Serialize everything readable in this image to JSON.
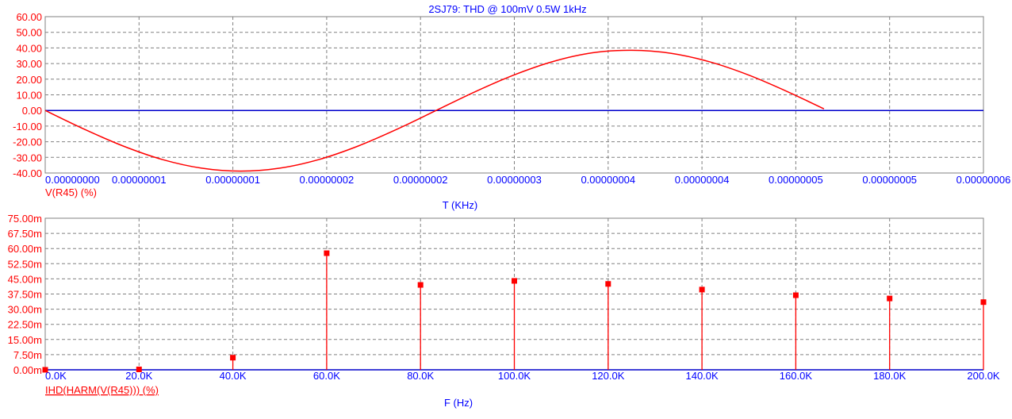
{
  "colors": {
    "trace": "#ff0000",
    "ylabels": "#ff0000",
    "xlabels": "#0000ff",
    "axis": "#0000cc",
    "grid": "#808080"
  },
  "chart_data": [
    {
      "type": "line",
      "title": "2SJ79: THD @ 100mV 0.5W  1kHz",
      "xlabel": "T (KHz)",
      "ylabel": "V(R45) (%)",
      "xlim": [
        0,
        6e-08
      ],
      "ylim": [
        -40,
        60
      ],
      "grid": true,
      "xticks": [
        0,
        6e-09,
        1.2e-08,
        1.8e-08,
        2.4e-08,
        3e-08,
        3.6e-08,
        4.2e-08,
        4.8e-08,
        5.4e-08,
        6e-08
      ],
      "xtick_labels": [
        "0.00000000",
        "0.00000001",
        "0.00000001",
        "0.00000002",
        "0.00000002",
        "0.00000003",
        "0.00000004",
        "0.00000004",
        "0.00000005",
        "0.00000005",
        "0.00000006"
      ],
      "yticks": [
        60,
        50,
        40,
        30,
        20,
        10,
        0,
        -10,
        -20,
        -30,
        -40
      ],
      "ytick_labels": [
        "60.00",
        "50.00",
        "40.00",
        "30.00",
        "20.00",
        "10.00",
        "0.00",
        "-10.00",
        "-20.00",
        "-30.00",
        "-40.00"
      ],
      "series": [
        {
          "x": [
            0,
            2.5e-09,
            5e-09,
            7.5e-09,
            1e-08,
            1.25e-08,
            1.5e-08,
            1.75e-08,
            2e-08,
            2.25e-08,
            2.5e-08,
            2.75e-08,
            3e-08,
            3.25e-08,
            3.5e-08,
            3.75e-08,
            4e-08,
            4.25e-08,
            4.5e-08,
            4.75e-08,
            4.98e-08
          ],
          "y": [
            0,
            -12.0,
            -22.8,
            -31.4,
            -36.9,
            -38.8,
            -36.9,
            -31.4,
            -22.8,
            -12.0,
            0,
            12.0,
            22.8,
            31.4,
            36.9,
            38.5,
            36.6,
            31.1,
            22.6,
            11.9,
            1.0
          ]
        }
      ]
    },
    {
      "type": "bar",
      "style": "stem",
      "xlabel": "F (Hz)",
      "ylabel": "IHD(HARM(V(R45))) (%)",
      "xlim": [
        0,
        200000
      ],
      "ylim": [
        0,
        0.075
      ],
      "grid": true,
      "xticks": [
        0,
        20000,
        40000,
        60000,
        80000,
        100000,
        120000,
        140000,
        160000,
        180000,
        200000
      ],
      "xtick_labels": [
        "0.0K",
        "20.0K",
        "40.0K",
        "60.0K",
        "80.0K",
        "100.0K",
        "120.0K",
        "140.0K",
        "160.0K",
        "180.0K",
        "200.0K"
      ],
      "yticks": [
        0.075,
        0.0675,
        0.06,
        0.0525,
        0.045,
        0.0375,
        0.03,
        0.0225,
        0.015,
        0.0075,
        0
      ],
      "ytick_labels": [
        "75.00m",
        "67.50m",
        "60.00m",
        "52.50m",
        "45.00m",
        "37.50m",
        "30.00m",
        "22.50m",
        "15.00m",
        "7.50m",
        "0.00m"
      ],
      "series": [
        {
          "x": [
            0,
            20000,
            40000,
            60000,
            80000,
            100000,
            120000,
            140000,
            160000,
            180000,
            200000
          ],
          "y": [
            0,
            0.0002,
            0.006,
            0.0577,
            0.042,
            0.044,
            0.0425,
            0.0397,
            0.0369,
            0.0353,
            0.0335
          ]
        }
      ]
    }
  ]
}
